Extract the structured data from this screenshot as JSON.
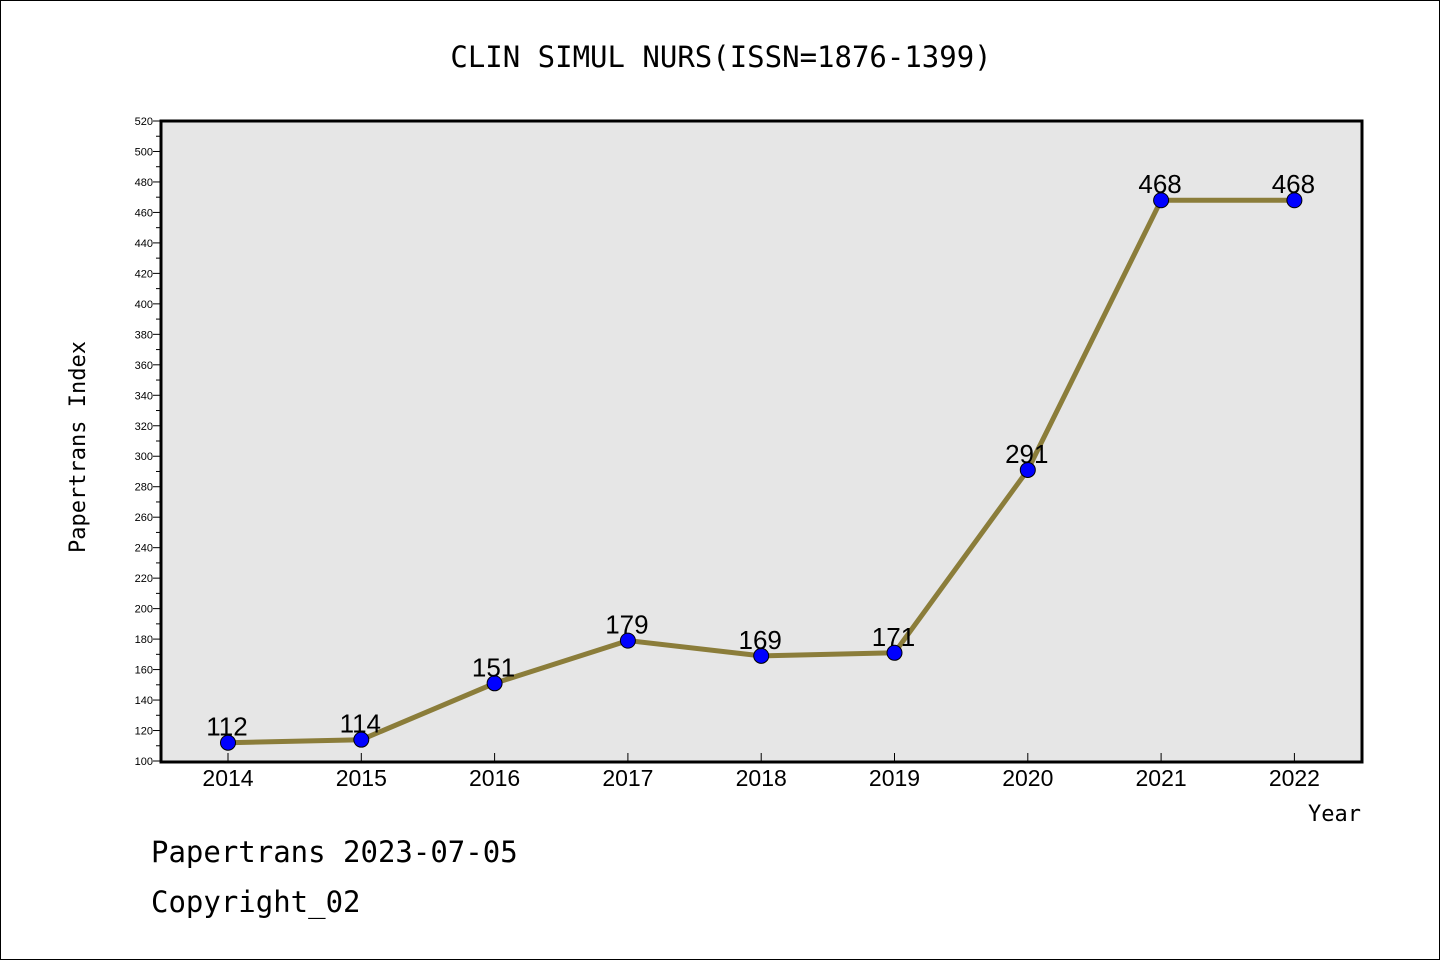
{
  "chart_data": {
    "type": "line",
    "title": "CLIN SIMUL NURS(ISSN=1876-1399)",
    "xlabel": "Year",
    "ylabel": "Papertrans Index",
    "categories": [
      "2014",
      "2015",
      "2016",
      "2017",
      "2018",
      "2019",
      "2020",
      "2021",
      "2022"
    ],
    "series": [
      {
        "values": [
          112,
          114,
          151,
          179,
          169,
          171,
          291,
          468,
          468
        ]
      }
    ],
    "data_labels": [
      "112",
      "114",
      "151",
      "179",
      "169",
      "171",
      "291",
      "468",
      "468"
    ],
    "ylim": [
      100,
      520
    ],
    "yticks": [
      "100",
      "120",
      "140",
      "160",
      "180",
      "200",
      "220",
      "240",
      "260",
      "280",
      "300",
      "320",
      "340",
      "360",
      "380",
      "400",
      "420",
      "440",
      "460",
      "480",
      "500",
      "520"
    ],
    "grid": false,
    "legend": "none",
    "colors": {
      "line": "#8b7d3a",
      "marker": "#0000ff",
      "plot_background": "#e6e6e6"
    }
  },
  "footer": {
    "line1": "Papertrans 2023-07-05",
    "line2": "Copyright_02"
  }
}
